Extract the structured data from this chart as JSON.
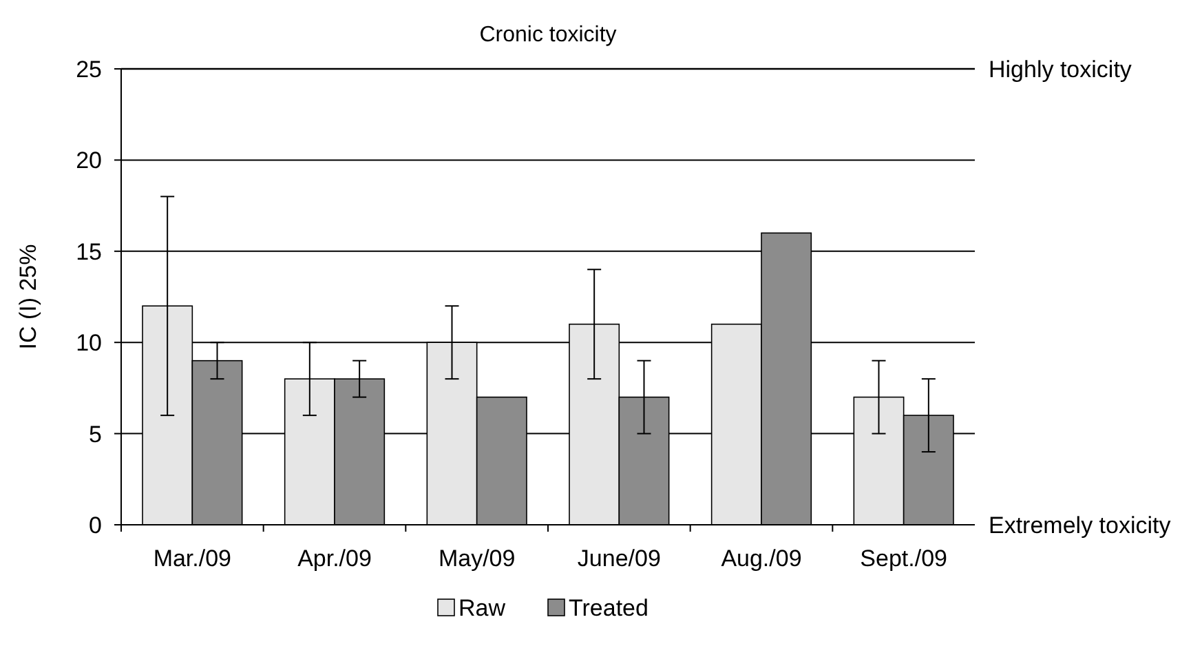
{
  "chart_data": {
    "type": "bar",
    "title": "Cronic toxicity",
    "ylabel": "IC (I) 25%",
    "categories": [
      "Mar./09",
      "Apr./09",
      "May/09",
      "June/09",
      "Aug./09",
      "Sept./09"
    ],
    "series": [
      {
        "name": "Raw",
        "color": "#e6e6e6",
        "values": [
          12,
          8,
          10,
          11,
          11,
          7
        ],
        "errors": [
          6,
          2,
          2,
          3,
          null,
          2
        ]
      },
      {
        "name": "Treated",
        "color": "#8c8c8c",
        "values": [
          9,
          8,
          7,
          7,
          16,
          6
        ],
        "errors": [
          1,
          1,
          null,
          2,
          null,
          2
        ]
      }
    ],
    "ylim": [
      0,
      25
    ],
    "yticks": [
      0,
      5,
      10,
      15,
      20,
      25
    ],
    "grid": "y",
    "legend": "bottom",
    "ref_lines": [
      {
        "axis": "y",
        "value": 25,
        "label": "Highly toxicity"
      }
    ],
    "annotations": [
      "Extremely toxicity"
    ]
  }
}
